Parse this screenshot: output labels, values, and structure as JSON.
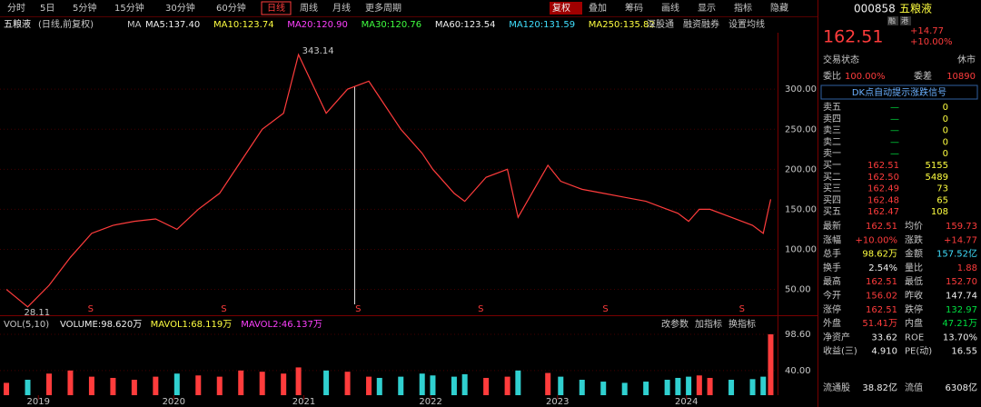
{
  "toolbar": {
    "left": [
      "分时",
      "5日",
      "5分钟",
      "15分钟",
      "30分钟",
      "60分钟",
      "日线",
      "周线",
      "月线",
      "更多周期"
    ],
    "active": "日线",
    "right": [
      "复权",
      "叠加",
      "筹码",
      "画线",
      "显示",
      "指标",
      "隐藏"
    ],
    "highlight": "复权"
  },
  "legend": {
    "name": "五粮液",
    "period": "(日线,前复权)",
    "ma_title": "MA",
    "mas": [
      {
        "text": "MA5:137.40",
        "c": "wh"
      },
      {
        "text": "MA10:123.74",
        "c": "yl"
      },
      {
        "text": "MA20:120.90",
        "c": "mg"
      },
      {
        "text": "MA30:120.76",
        "c": "gr"
      },
      {
        "text": "MA60:123.54",
        "c": "wh"
      },
      {
        "text": "MA120:131.59",
        "c": "cy"
      },
      {
        "text": "MA250:135.82",
        "c": "yl"
      }
    ],
    "right": [
      "深股通",
      "融资融券",
      "设置均线"
    ]
  },
  "volume_legend": {
    "title": "VOL(5,10)",
    "items": [
      {
        "text": "VOLUME:98.620万",
        "c": "wh"
      },
      {
        "text": "MAVOL1:68.119万",
        "c": "yl"
      },
      {
        "text": "MAVOL2:46.137万",
        "c": "mg"
      }
    ],
    "buttons": [
      "改参数",
      "加指标",
      "换指标"
    ]
  },
  "chart_data": [
    {
      "type": "line",
      "x": [
        -3,
        -1,
        1,
        3,
        5,
        7,
        9,
        11,
        13,
        15,
        17,
        19,
        21,
        23,
        24.4,
        27,
        29,
        31,
        32,
        34,
        36,
        37,
        39,
        40,
        42,
        44,
        45,
        47.8,
        49,
        51,
        53,
        55,
        57,
        59,
        60,
        61,
        62,
        63,
        65,
        67,
        68,
        68.7
      ],
      "series": [
        {
          "color": "#ff3c3c",
          "values": [
            50,
            28.11,
            55,
            90,
            120,
            130,
            135,
            138,
            125,
            150,
            170,
            210,
            250,
            270,
            343.14,
            270,
            300,
            310,
            290,
            250,
            220,
            200,
            170,
            160,
            190,
            200,
            140,
            205,
            185,
            175,
            170,
            165,
            160,
            150,
            145,
            135,
            150,
            150,
            140,
            130,
            120,
            162.51
          ]
        }
      ],
      "xlim": [
        -3.6,
        69
      ],
      "ylim": [
        20,
        366
      ],
      "yticks": [
        {
          "value": 300,
          "label": "300.00"
        },
        {
          "value": 250,
          "label": "250.00"
        },
        {
          "value": 200,
          "label": "200.00"
        },
        {
          "value": 150,
          "label": "150.00"
        },
        {
          "value": 100,
          "label": "100.00"
        },
        {
          "value": 50,
          "label": "50.00"
        }
      ],
      "xticks": [
        {
          "value": 0,
          "label": "2019"
        },
        {
          "value": 12.7,
          "label": "2020"
        },
        {
          "value": 24.9,
          "label": "2021"
        },
        {
          "value": 36.8,
          "label": "2022"
        },
        {
          "value": 48.7,
          "label": "2023"
        },
        {
          "value": 60.8,
          "label": "2024"
        }
      ],
      "signals": [
        {
          "x": 4.9,
          "label": "S"
        },
        {
          "x": 17.4,
          "label": "S"
        },
        {
          "x": 30,
          "label": "S"
        },
        {
          "x": 41.5,
          "label": "S"
        },
        {
          "x": 53.2,
          "label": "S"
        },
        {
          "x": 66,
          "label": "S"
        }
      ],
      "grid": true
    },
    {
      "type": "bar",
      "values": [
        20,
        25,
        35,
        40,
        30,
        28,
        25,
        30,
        35,
        32,
        30,
        40,
        38,
        35,
        45,
        40,
        38,
        30,
        28,
        30,
        35,
        32,
        30,
        34,
        28,
        30,
        40,
        36,
        30,
        25,
        22,
        20,
        22,
        25,
        28,
        30,
        32,
        28,
        25,
        26,
        30,
        98.62
      ],
      "ylim": [
        0,
        98.6
      ],
      "yticks": [
        {
          "value": 98.6,
          "label": "98.60"
        },
        {
          "value": 40,
          "label": "40.00"
        }
      ],
      "up_color": "#ff3c3c",
      "down_color": "#30d0d0"
    }
  ],
  "quote": {
    "code": "000858",
    "name": "五粮液",
    "badges": [
      "融",
      "港"
    ],
    "price": "162.51",
    "change": "+14.77",
    "pct": "+10.00%",
    "status_label": "交易状态",
    "status": "休市",
    "wb_label": "委比",
    "wb": "100.00%",
    "wc_label": "委差",
    "wc": "10890",
    "signal_button": "DK点自动提示涨跌信号",
    "book": [
      [
        "卖五",
        "—",
        "0"
      ],
      [
        "卖四",
        "—",
        "0"
      ],
      [
        "卖三",
        "—",
        "0"
      ],
      [
        "卖二",
        "—",
        "0"
      ],
      [
        "卖一",
        "—",
        "0"
      ],
      [
        "买一",
        "162.51",
        "5155"
      ],
      [
        "买二",
        "162.50",
        "5489"
      ],
      [
        "买三",
        "162.49",
        "73"
      ],
      [
        "买四",
        "162.48",
        "65"
      ],
      [
        "买五",
        "162.47",
        "108"
      ]
    ],
    "stats": [
      [
        [
          "最新",
          "162.51",
          "up"
        ],
        [
          "均价",
          "159.73",
          "up"
        ]
      ],
      [
        [
          "涨幅",
          "+10.00%",
          "up"
        ],
        [
          "涨跌",
          "+14.77",
          "up"
        ]
      ],
      [
        [
          "总手",
          "98.62万",
          "yl"
        ],
        [
          "金额",
          "157.52亿",
          "cy"
        ]
      ],
      [
        [
          "换手",
          "2.54%",
          "wh"
        ],
        [
          "量比",
          "1.88",
          "up"
        ]
      ],
      [
        [
          "最高",
          "162.51",
          "up"
        ],
        [
          "最低",
          "152.70",
          "up"
        ]
      ],
      [
        [
          "今开",
          "156.02",
          "up"
        ],
        [
          "昨收",
          "147.74",
          "wh"
        ]
      ],
      [
        [
          "涨停",
          "162.51",
          "up"
        ],
        [
          "跌停",
          "132.97",
          "dn"
        ]
      ],
      [
        [
          "外盘",
          "51.41万",
          "up"
        ],
        [
          "内盘",
          "47.21万",
          "dn"
        ]
      ],
      [
        [
          "净资产",
          "33.62",
          "wh"
        ],
        [
          "ROE",
          "13.70%",
          "wh"
        ]
      ],
      [
        [
          "收益(三)",
          "4.910",
          "wh"
        ],
        [
          "PE(动)",
          "16.55",
          "wh"
        ]
      ]
    ],
    "float": [
      [
        "流通股",
        "38.82亿",
        "wh"
      ],
      [
        "流值",
        "6308亿",
        "wh"
      ]
    ]
  }
}
